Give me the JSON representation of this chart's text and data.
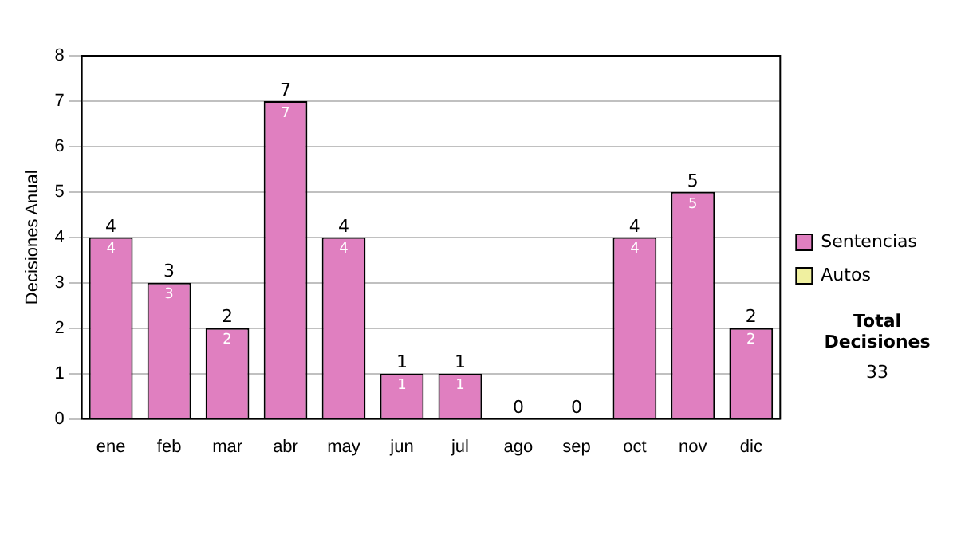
{
  "chart_data": {
    "type": "bar",
    "stacked": true,
    "ylabel": "Decisiones Anual",
    "categories": [
      "ene",
      "feb",
      "mar",
      "abr",
      "may",
      "jun",
      "jul",
      "ago",
      "sep",
      "oct",
      "nov",
      "dic"
    ],
    "series": [
      {
        "name": "Sentencias",
        "color": "#e07fc0",
        "values": [
          4,
          3,
          2,
          7,
          4,
          1,
          1,
          0,
          0,
          4,
          5,
          2
        ],
        "value_labels": [
          "4",
          "3",
          "2",
          "7",
          "4",
          "1",
          "1",
          null,
          null,
          "4",
          "5",
          "2"
        ]
      },
      {
        "name": "Autos",
        "color": "#f0f0a0",
        "values": [
          0,
          0,
          0,
          0,
          0,
          0,
          0,
          0,
          0,
          0,
          0,
          0
        ]
      }
    ],
    "totals": [
      "4",
      "3",
      "2",
      "7",
      "4",
      "1",
      "1",
      "0",
      "0",
      "4",
      "5",
      "2"
    ],
    "ylim": [
      0,
      8
    ],
    "yticks": [
      0,
      1,
      2,
      3,
      4,
      5,
      6,
      7,
      8
    ],
    "grid": "y",
    "legend": "right",
    "annotations": [
      "Total Decisiones",
      "33"
    ]
  }
}
